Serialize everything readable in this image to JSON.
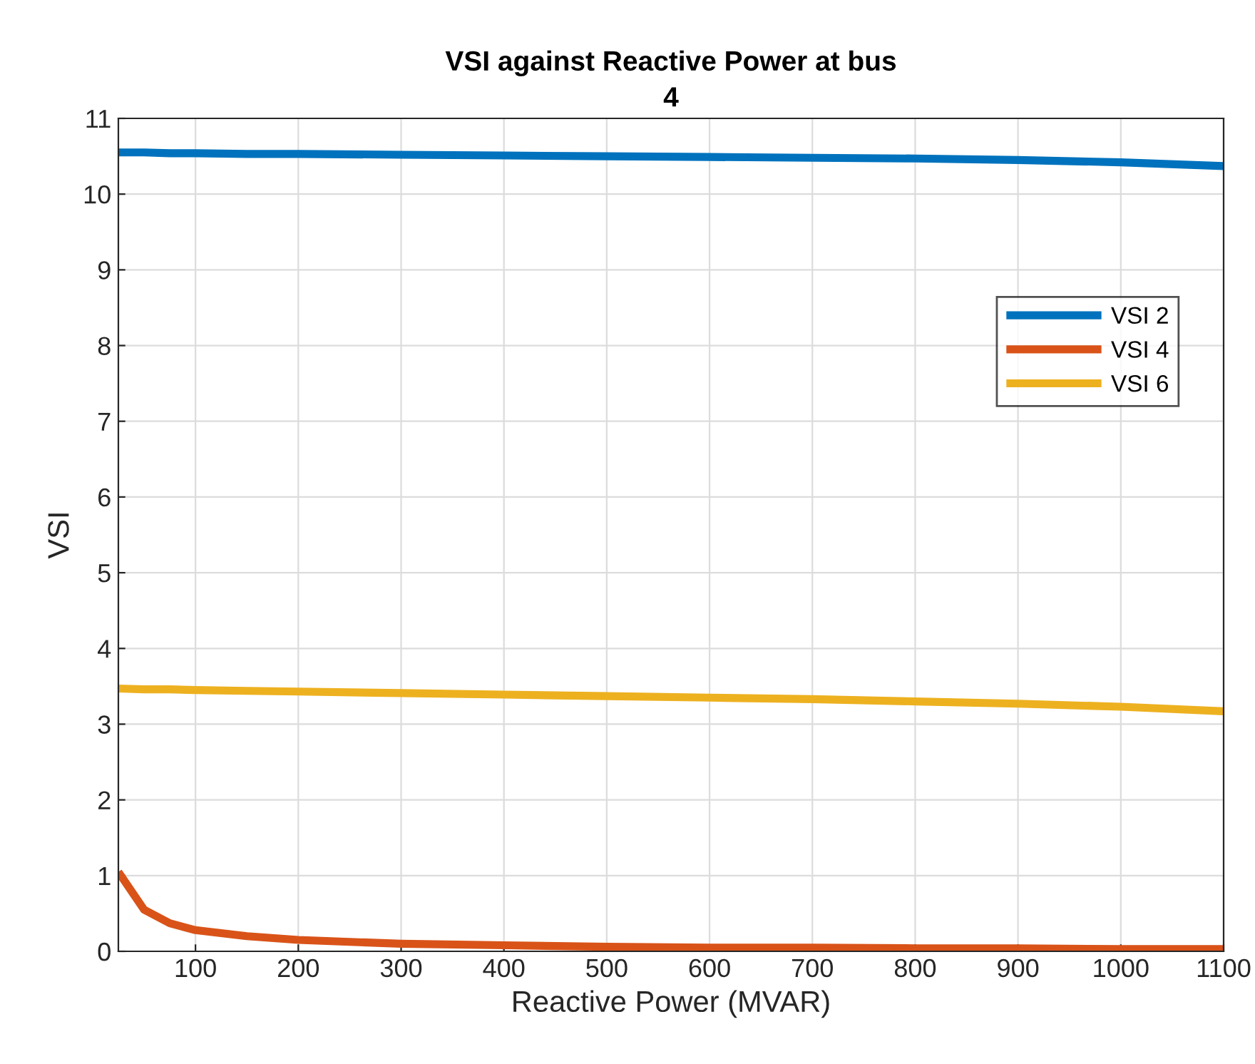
{
  "chart_data": {
    "type": "line",
    "title": "VSI against Reactive Power at bus\n4",
    "xlabel": "Reactive Power (MVAR)",
    "ylabel": "VSI",
    "x": [
      25,
      50,
      75,
      100,
      150,
      200,
      300,
      400,
      500,
      600,
      700,
      800,
      900,
      1000,
      1100
    ],
    "series": [
      {
        "name": "VSI 2",
        "color": "#0072bd",
        "values": [
          10.55,
          10.55,
          10.54,
          10.54,
          10.53,
          10.53,
          10.52,
          10.51,
          10.5,
          10.49,
          10.48,
          10.47,
          10.45,
          10.42,
          10.37
        ]
      },
      {
        "name": "VSI 4",
        "color": "#d95319",
        "values": [
          1.05,
          0.55,
          0.37,
          0.28,
          0.2,
          0.15,
          0.1,
          0.08,
          0.06,
          0.05,
          0.05,
          0.04,
          0.04,
          0.03,
          0.03
        ]
      },
      {
        "name": "VSI 6",
        "color": "#edb120",
        "values": [
          3.47,
          3.46,
          3.46,
          3.45,
          3.44,
          3.43,
          3.41,
          3.39,
          3.37,
          3.35,
          3.33,
          3.3,
          3.27,
          3.23,
          3.17
        ]
      }
    ],
    "xlim": [
      25,
      1100
    ],
    "xticks": [
      100,
      200,
      300,
      400,
      500,
      600,
      700,
      800,
      900,
      1000,
      1100
    ],
    "ylim": [
      0,
      11
    ],
    "yticks": [
      0,
      1,
      2,
      3,
      4,
      5,
      6,
      7,
      8,
      9,
      10,
      11
    ],
    "grid": true,
    "legend": "right",
    "marker": "none",
    "line_style": "solid"
  }
}
